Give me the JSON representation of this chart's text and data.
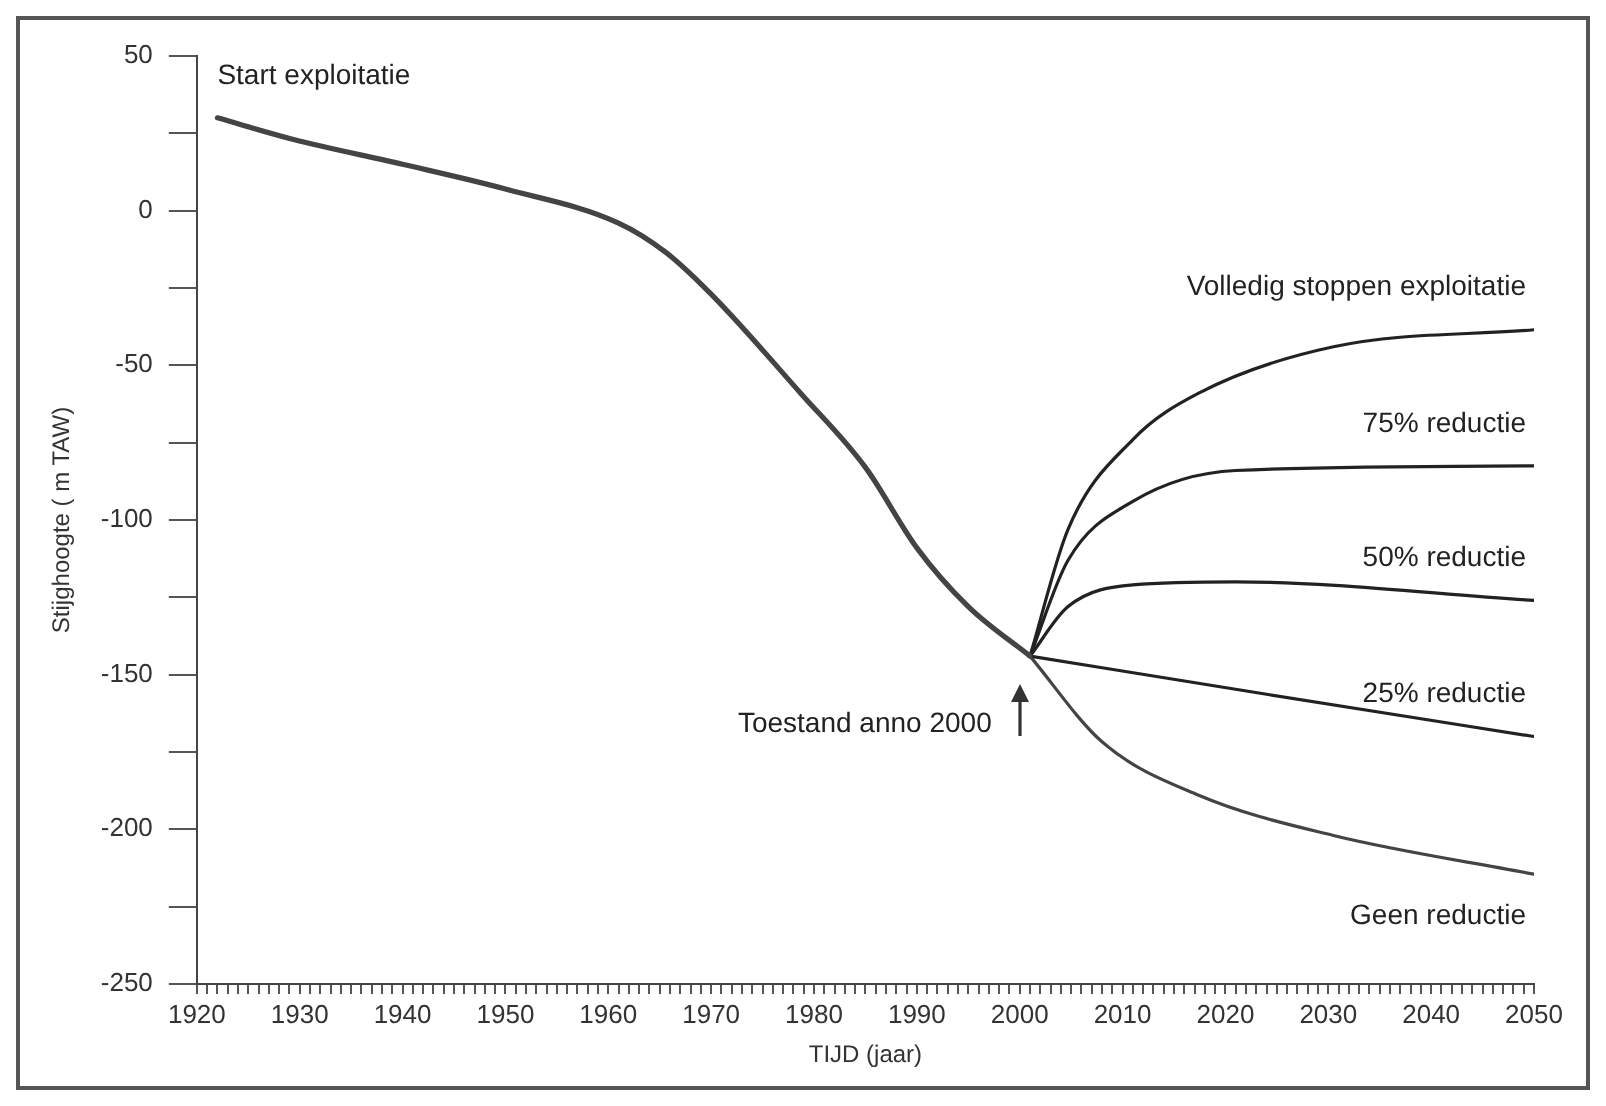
{
  "chart_data": {
    "type": "line",
    "xlabel": "TIJD (jaar)",
    "ylabel": "Stijghoogte ( m TAW)",
    "xlim": [
      1920,
      2050
    ],
    "xticks": [
      1920,
      {
        "value": 1921,
        "label": null
      },
      {
        "value": 1922,
        "label": null
      },
      {
        "value": 1923,
        "label": null
      },
      {
        "value": 1924,
        "label": null
      },
      {
        "value": 1925,
        "label": null
      },
      {
        "value": 1926,
        "label": null
      },
      {
        "value": 1927,
        "label": null
      },
      {
        "value": 1928,
        "label": null
      },
      {
        "value": 1929,
        "label": null
      },
      1930,
      {
        "value": 1931,
        "label": null
      },
      {
        "value": 1932,
        "label": null
      },
      {
        "value": 1933,
        "label": null
      },
      {
        "value": 1934,
        "label": null
      },
      {
        "value": 1935,
        "label": null
      },
      {
        "value": 1936,
        "label": null
      },
      {
        "value": 1937,
        "label": null
      },
      {
        "value": 1938,
        "label": null
      },
      {
        "value": 1939,
        "label": null
      },
      1940,
      {
        "value": 1941,
        "label": null
      },
      {
        "value": 1942,
        "label": null
      },
      {
        "value": 1943,
        "label": null
      },
      {
        "value": 1944,
        "label": null
      },
      {
        "value": 1945,
        "label": null
      },
      {
        "value": 1946,
        "label": null
      },
      {
        "value": 1947,
        "label": null
      },
      {
        "value": 1948,
        "label": null
      },
      {
        "value": 1949,
        "label": null
      },
      1950,
      {
        "value": 1951,
        "label": null
      },
      {
        "value": 1952,
        "label": null
      },
      {
        "value": 1953,
        "label": null
      },
      {
        "value": 1954,
        "label": null
      },
      {
        "value": 1955,
        "label": null
      },
      {
        "value": 1956,
        "label": null
      },
      {
        "value": 1957,
        "label": null
      },
      {
        "value": 1958,
        "label": null
      },
      {
        "value": 1959,
        "label": null
      },
      1960,
      {
        "value": 1961,
        "label": null
      },
      {
        "value": 1962,
        "label": null
      },
      {
        "value": 1963,
        "label": null
      },
      {
        "value": 1964,
        "label": null
      },
      {
        "value": 1965,
        "label": null
      },
      {
        "value": 1966,
        "label": null
      },
      {
        "value": 1967,
        "label": null
      },
      {
        "value": 1968,
        "label": null
      },
      {
        "value": 1969,
        "label": null
      },
      1970,
      {
        "value": 1971,
        "label": null
      },
      {
        "value": 1972,
        "label": null
      },
      {
        "value": 1973,
        "label": null
      },
      {
        "value": 1974,
        "label": null
      },
      {
        "value": 1975,
        "label": null
      },
      {
        "value": 1976,
        "label": null
      },
      {
        "value": 1977,
        "label": null
      },
      {
        "value": 1978,
        "label": null
      },
      {
        "value": 1979,
        "label": null
      },
      1980,
      {
        "value": 1981,
        "label": null
      },
      {
        "value": 1982,
        "label": null
      },
      {
        "value": 1983,
        "label": null
      },
      {
        "value": 1984,
        "label": null
      },
      {
        "value": 1985,
        "label": null
      },
      {
        "value": 1986,
        "label": null
      },
      {
        "value": 1987,
        "label": null
      },
      {
        "value": 1988,
        "label": null
      },
      {
        "value": 1989,
        "label": null
      },
      1990,
      {
        "value": 1991,
        "label": null
      },
      {
        "value": 1992,
        "label": null
      },
      {
        "value": 1993,
        "label": null
      },
      {
        "value": 1994,
        "label": null
      },
      {
        "value": 1995,
        "label": null
      },
      {
        "value": 1996,
        "label": null
      },
      {
        "value": 1997,
        "label": null
      },
      {
        "value": 1998,
        "label": null
      },
      {
        "value": 1999,
        "label": null
      },
      2000,
      {
        "value": 2001,
        "label": null
      },
      {
        "value": 2002,
        "label": null
      },
      {
        "value": 2003,
        "label": null
      },
      {
        "value": 2004,
        "label": null
      },
      {
        "value": 2005,
        "label": null
      },
      {
        "value": 2006,
        "label": null
      },
      {
        "value": 2007,
        "label": null
      },
      {
        "value": 2008,
        "label": null
      },
      {
        "value": 2009,
        "label": null
      },
      2010,
      {
        "value": 2011,
        "label": null
      },
      {
        "value": 2012,
        "label": null
      },
      {
        "value": 2013,
        "label": null
      },
      {
        "value": 2014,
        "label": null
      },
      {
        "value": 2015,
        "label": null
      },
      {
        "value": 2016,
        "label": null
      },
      {
        "value": 2017,
        "label": null
      },
      {
        "value": 2018,
        "label": null
      },
      {
        "value": 2019,
        "label": null
      },
      2020,
      {
        "value": 2021,
        "label": null
      },
      {
        "value": 2022,
        "label": null
      },
      {
        "value": 2023,
        "label": null
      },
      {
        "value": 2024,
        "label": null
      },
      {
        "value": 2025,
        "label": null
      },
      {
        "value": 2026,
        "label": null
      },
      {
        "value": 2027,
        "label": null
      },
      {
        "value": 2028,
        "label": null
      },
      {
        "value": 2029,
        "label": null
      },
      2030,
      {
        "value": 2031,
        "label": null
      },
      {
        "value": 2032,
        "label": null
      },
      {
        "value": 2033,
        "label": null
      },
      {
        "value": 2034,
        "label": null
      },
      {
        "value": 2035,
        "label": null
      },
      {
        "value": 2036,
        "label": null
      },
      {
        "value": 2037,
        "label": null
      },
      {
        "value": 2038,
        "label": null
      },
      {
        "value": 2039,
        "label": null
      },
      2040,
      {
        "value": 2041,
        "label": null
      },
      {
        "value": 2042,
        "label": null
      },
      {
        "value": 2043,
        "label": null
      },
      {
        "value": 2044,
        "label": null
      },
      {
        "value": 2045,
        "label": null
      },
      {
        "value": 2046,
        "label": null
      },
      {
        "value": 2047,
        "label": null
      },
      {
        "value": 2048,
        "label": null
      },
      {
        "value": 2049,
        "label": null
      },
      2050
    ],
    "ylim": [
      -250,
      50
    ],
    "yticks": [
      -250,
      {
        "value": -225,
        "label": null
      },
      -200,
      {
        "value": -175,
        "label": null
      },
      -150,
      {
        "value": -125,
        "label": null
      },
      -100,
      {
        "value": -75,
        "label": null
      },
      -50,
      {
        "value": -25,
        "label": null
      },
      0,
      {
        "value": 25,
        "label": null
      },
      50
    ],
    "grid": false,
    "legend": false,
    "marker": "none",
    "line_style": "solid",
    "series": [
      {
        "color": "#444444",
        "x": [
          1922,
          1929.4,
          1940,
          1950,
          1961,
          1965.6,
          1970,
          1978.7,
          1985,
          1990,
          1995,
          2001
        ],
        "values": [
          30,
          23,
          15,
          7,
          -4,
          -13.5,
          -27,
          -59,
          -83,
          -109,
          -128,
          -144
        ]
      },
      {
        "name": "Volledig stoppen exploitatie",
        "color": "#222222",
        "x": [
          2001,
          2004.7,
          2011,
          2017.4,
          2030.5,
          2050
        ],
        "values": [
          -144,
          -103,
          -74,
          -59,
          -44,
          -38.5
        ]
      },
      {
        "name": "75% reductie",
        "color": "#222222",
        "x": [
          2001,
          2004.7,
          2011,
          2021,
          2050
        ],
        "values": [
          -144,
          -113,
          -94,
          -84,
          -82.5
        ]
      },
      {
        "name": "50% reductie",
        "color": "#222222",
        "x": [
          2001,
          2004.7,
          2011,
          2021,
          2050
        ],
        "values": [
          -144,
          -128,
          -121,
          -120,
          -126
        ]
      },
      {
        "name": "25% reductie",
        "color": "#222222",
        "x": [
          2001,
          2024.3,
          2050
        ],
        "values": [
          -144,
          -156.5,
          -170
        ]
      },
      {
        "name": "Geen reductie",
        "color": "#444444",
        "x": [
          2001,
          2008,
          2017.4,
          2030.5,
          2050
        ],
        "values": [
          -144,
          -171.7,
          -189,
          -202,
          -214.5
        ]
      }
    ],
    "annotations": [
      {
        "text": "Start exploitatie",
        "x": 1922,
        "y": 30
      },
      {
        "text": "Toestand anno 2000",
        "x": 2000,
        "y": -144
      }
    ]
  }
}
